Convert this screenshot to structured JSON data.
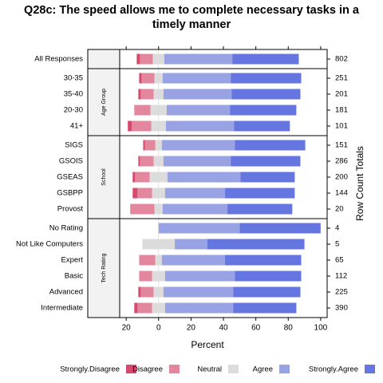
{
  "chart_data": {
    "type": "likert",
    "title": "Q28c: The speed allows me to complete necessary tasks in a timely manner",
    "x_label": "Percent",
    "y2_label": "Row Count Totals",
    "xlim": [
      -24,
      104
    ],
    "xticks": [
      {
        "value": -20,
        "label": "20"
      },
      0,
      20,
      40,
      60,
      80,
      100
    ],
    "panels": [
      {
        "categories": [
          "All Responses"
        ],
        "counts": [
          802
        ]
      },
      {
        "strip": "Age Group",
        "categories": [
          "30-35",
          "35-40",
          "20-30",
          "41+"
        ],
        "counts": [
          251,
          201,
          181,
          101
        ]
      },
      {
        "strip": "School",
        "categories": [
          "SIGS",
          "GSOIS",
          "GSEAS",
          "GSBPP",
          "Provost"
        ],
        "counts": [
          151,
          286,
          200,
          144,
          20
        ]
      },
      {
        "strip": "Tech Rating",
        "categories": [
          "No Rating",
          "Not Like Computers",
          "Expert",
          "Basic",
          "Advanced",
          "Intermediate"
        ],
        "counts": [
          4,
          5,
          65,
          112,
          225,
          390
        ]
      }
    ],
    "series": [
      {
        "name": "Strongly.Disagree",
        "color": "#d64a6e",
        "side": "negative",
        "values": [
          [
            2
          ],
          [
            1.5,
            1.5,
            0,
            2.5
          ],
          [
            1,
            1,
            1.5,
            3,
            0
          ],
          [
            0,
            0,
            0,
            0,
            1.5,
            2
          ]
        ]
      },
      {
        "name": "Disagree",
        "color": "#e3879e",
        "side": "negative",
        "values": [
          [
            8
          ],
          [
            8,
            8,
            10,
            12
          ],
          [
            6.5,
            8.5,
            9,
            9,
            15
          ],
          [
            0,
            0,
            10,
            8,
            8,
            9
          ]
        ]
      },
      {
        "name": "Neutral",
        "color": "#dcdcdc",
        "side": "center",
        "values": [
          [
            7
          ],
          [
            5,
            6,
            10,
            9
          ],
          [
            4,
            6,
            11,
            8,
            5
          ],
          [
            0,
            20,
            4,
            8,
            6,
            8
          ]
        ]
      },
      {
        "name": "Agree",
        "color": "#99a2e2",
        "side": "positive",
        "values": [
          [
            42
          ],
          [
            42,
            42,
            39,
            42
          ],
          [
            45,
            41.5,
            45,
            37,
            40
          ],
          [
            50,
            20,
            39,
            43,
            43,
            42
          ]
        ]
      },
      {
        "name": "Strongly.Agree",
        "color": "#6676e0",
        "side": "positive",
        "values": [
          [
            41
          ],
          [
            43.5,
            42.5,
            41,
            34.5
          ],
          [
            43.5,
            43,
            33.5,
            43,
            40
          ],
          [
            50,
            60,
            47,
            41,
            41.5,
            39
          ]
        ]
      }
    ]
  }
}
